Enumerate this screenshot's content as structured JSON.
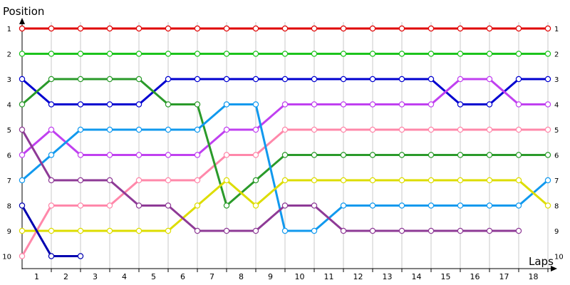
{
  "chart_data": {
    "type": "line",
    "ylabel": "Position",
    "xlabel": "Laps",
    "x_ticks": [
      "1",
      "2",
      "3",
      "4",
      "5",
      "6",
      "7",
      "8",
      "9",
      "10",
      "11",
      "12",
      "13",
      "14",
      "15",
      "16",
      "17",
      "18"
    ],
    "y_ticks": [
      "1",
      "2",
      "3",
      "4",
      "5",
      "6",
      "7",
      "8",
      "9",
      "10"
    ],
    "xlim": [
      0,
      18.5
    ],
    "ylim": [
      10,
      1
    ],
    "y_reversed": true,
    "grid": "vertical",
    "series": [
      {
        "color": "#e00000",
        "points": [
          [
            0,
            1
          ],
          [
            1,
            1
          ],
          [
            2,
            1
          ],
          [
            3,
            1
          ],
          [
            4,
            1
          ],
          [
            5,
            1
          ],
          [
            6,
            1
          ],
          [
            7,
            1
          ],
          [
            8,
            1
          ],
          [
            9,
            1
          ],
          [
            10,
            1
          ],
          [
            11,
            1
          ],
          [
            12,
            1
          ],
          [
            13,
            1
          ],
          [
            14,
            1
          ],
          [
            15,
            1
          ],
          [
            16,
            1
          ],
          [
            17,
            1
          ],
          [
            18,
            1
          ]
        ]
      },
      {
        "color": "#1cc41c",
        "points": [
          [
            0,
            2
          ],
          [
            1,
            2
          ],
          [
            2,
            2
          ],
          [
            3,
            2
          ],
          [
            4,
            2
          ],
          [
            5,
            2
          ],
          [
            6,
            2
          ],
          [
            7,
            2
          ],
          [
            8,
            2
          ],
          [
            9,
            2
          ],
          [
            10,
            2
          ],
          [
            11,
            2
          ],
          [
            12,
            2
          ],
          [
            13,
            2
          ],
          [
            14,
            2
          ],
          [
            15,
            2
          ],
          [
            16,
            2
          ],
          [
            17,
            2
          ],
          [
            18,
            2
          ]
        ]
      },
      {
        "color": "#0000d0",
        "points": [
          [
            0,
            3
          ],
          [
            1,
            4
          ],
          [
            2,
            4
          ],
          [
            3,
            4
          ],
          [
            4,
            4
          ],
          [
            5,
            3
          ],
          [
            6,
            3
          ],
          [
            7,
            3
          ],
          [
            8,
            3
          ],
          [
            9,
            3
          ],
          [
            10,
            3
          ],
          [
            11,
            3
          ],
          [
            12,
            3
          ],
          [
            13,
            3
          ],
          [
            14,
            3
          ],
          [
            15,
            4
          ],
          [
            16,
            4
          ],
          [
            17,
            3
          ],
          [
            18,
            3
          ]
        ]
      },
      {
        "color": "#c040f0",
        "points": [
          [
            0,
            6
          ],
          [
            1,
            5
          ],
          [
            2,
            6
          ],
          [
            3,
            6
          ],
          [
            4,
            6
          ],
          [
            5,
            6
          ],
          [
            6,
            6
          ],
          [
            7,
            5
          ],
          [
            8,
            5
          ],
          [
            9,
            4
          ],
          [
            10,
            4
          ],
          [
            11,
            4
          ],
          [
            12,
            4
          ],
          [
            13,
            4
          ],
          [
            14,
            4
          ],
          [
            15,
            3
          ],
          [
            16,
            3
          ],
          [
            17,
            4
          ],
          [
            18,
            4
          ]
        ]
      },
      {
        "color": "#ff88aa",
        "points": [
          [
            0,
            10
          ],
          [
            1,
            8
          ],
          [
            2,
            8
          ],
          [
            3,
            8
          ],
          [
            4,
            7
          ],
          [
            5,
            7
          ],
          [
            6,
            7
          ],
          [
            7,
            6
          ],
          [
            8,
            6
          ],
          [
            9,
            5
          ],
          [
            10,
            5
          ],
          [
            11,
            5
          ],
          [
            12,
            5
          ],
          [
            13,
            5
          ],
          [
            14,
            5
          ],
          [
            15,
            5
          ],
          [
            16,
            5
          ],
          [
            17,
            5
          ],
          [
            18,
            5
          ]
        ]
      },
      {
        "color": "#2a9a2a",
        "points": [
          [
            0,
            4
          ],
          [
            1,
            3
          ],
          [
            2,
            3
          ],
          [
            3,
            3
          ],
          [
            4,
            3
          ],
          [
            5,
            4
          ],
          [
            6,
            4
          ],
          [
            7,
            8
          ],
          [
            8,
            7
          ],
          [
            9,
            6
          ],
          [
            10,
            6
          ],
          [
            11,
            6
          ],
          [
            12,
            6
          ],
          [
            13,
            6
          ],
          [
            14,
            6
          ],
          [
            15,
            6
          ],
          [
            16,
            6
          ],
          [
            17,
            6
          ],
          [
            18,
            6
          ]
        ]
      },
      {
        "color": "#1199ee",
        "points": [
          [
            0,
            7
          ],
          [
            1,
            6
          ],
          [
            2,
            5
          ],
          [
            3,
            5
          ],
          [
            4,
            5
          ],
          [
            5,
            5
          ],
          [
            6,
            5
          ],
          [
            7,
            4
          ],
          [
            8,
            4
          ],
          [
            9,
            9
          ],
          [
            10,
            9
          ],
          [
            11,
            8
          ],
          [
            12,
            8
          ],
          [
            13,
            8
          ],
          [
            14,
            8
          ],
          [
            15,
            8
          ],
          [
            16,
            8
          ],
          [
            17,
            8
          ],
          [
            18,
            7
          ]
        ]
      },
      {
        "color": "#dddd00",
        "points": [
          [
            0,
            9
          ],
          [
            1,
            9
          ],
          [
            2,
            9
          ],
          [
            3,
            9
          ],
          [
            4,
            9
          ],
          [
            5,
            9
          ],
          [
            6,
            8
          ],
          [
            7,
            7
          ],
          [
            8,
            8
          ],
          [
            9,
            7
          ],
          [
            10,
            7
          ],
          [
            11,
            7
          ],
          [
            12,
            7
          ],
          [
            13,
            7
          ],
          [
            14,
            7
          ],
          [
            15,
            7
          ],
          [
            16,
            7
          ],
          [
            17,
            7
          ],
          [
            18,
            8
          ]
        ]
      },
      {
        "color": "#8e3a96",
        "points": [
          [
            0,
            5
          ],
          [
            1,
            7
          ],
          [
            2,
            7
          ],
          [
            3,
            7
          ],
          [
            4,
            8
          ],
          [
            5,
            8
          ],
          [
            6,
            9
          ],
          [
            7,
            9
          ],
          [
            8,
            9
          ],
          [
            9,
            8
          ],
          [
            10,
            8
          ],
          [
            11,
            9
          ],
          [
            12,
            9
          ],
          [
            13,
            9
          ],
          [
            14,
            9
          ],
          [
            15,
            9
          ],
          [
            16,
            9
          ],
          [
            17,
            9
          ]
        ]
      },
      {
        "color": "#0000b0",
        "points": [
          [
            0,
            8
          ],
          [
            1,
            10
          ],
          [
            2,
            10
          ]
        ]
      }
    ]
  }
}
